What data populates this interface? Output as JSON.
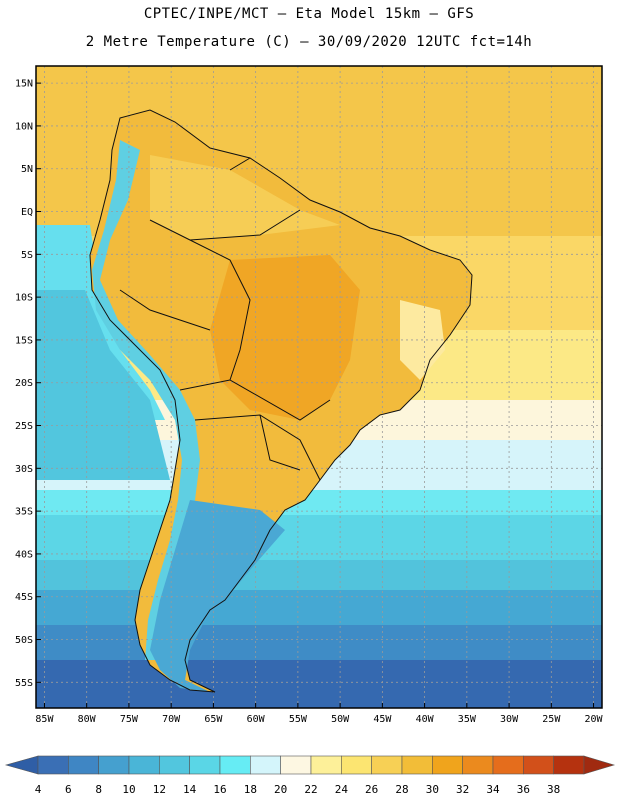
{
  "header": {
    "line1": "CPTEC/INPE/MCT –  Eta Model 15km – GFS",
    "line2": "2 Metre Temperature (C) – 30/09/2020 12UTC fct=14h"
  },
  "map": {
    "lat_labels": [
      "15N",
      "10N",
      "5N",
      "EQ",
      "5S",
      "10S",
      "15S",
      "20S",
      "25S",
      "30S",
      "35S",
      "40S",
      "45S",
      "50S",
      "55S"
    ],
    "lat_values": [
      15,
      10,
      5,
      0,
      -5,
      -10,
      -15,
      -20,
      -25,
      -30,
      -35,
      -40,
      -45,
      -50,
      -55
    ],
    "lon_labels": [
      "85W",
      "80W",
      "75W",
      "70W",
      "65W",
      "60W",
      "55W",
      "50W",
      "45W",
      "40W",
      "35W",
      "30W",
      "25W",
      "20W"
    ],
    "lon_values": [
      -85,
      -80,
      -75,
      -70,
      -65,
      -60,
      -55,
      -50,
      -45,
      -40,
      -35,
      -30,
      -25,
      -20
    ],
    "lon_range": [
      -86,
      -19
    ],
    "lat_range": [
      -58,
      17
    ]
  },
  "colorbar": {
    "labels": [
      "4",
      "6",
      "8",
      "10",
      "12",
      "14",
      "16",
      "18",
      "20",
      "22",
      "24",
      "26",
      "28",
      "30",
      "32",
      "34",
      "36",
      "38"
    ],
    "colors": [
      "#3a6fb5",
      "#3f86c4",
      "#45a0cf",
      "#4ab5d7",
      "#52c6de",
      "#5ad6e6",
      "#66ecf4",
      "#d4f5fb",
      "#fdf7e2",
      "#fdf099",
      "#fce571",
      "#f7d055",
      "#f2bd38",
      "#f0a41c",
      "#eb8a1e",
      "#e56d1c",
      "#d2501a",
      "#b5320f"
    ],
    "low_color": "#2f5ea6",
    "high_color": "#a02a10"
  }
}
